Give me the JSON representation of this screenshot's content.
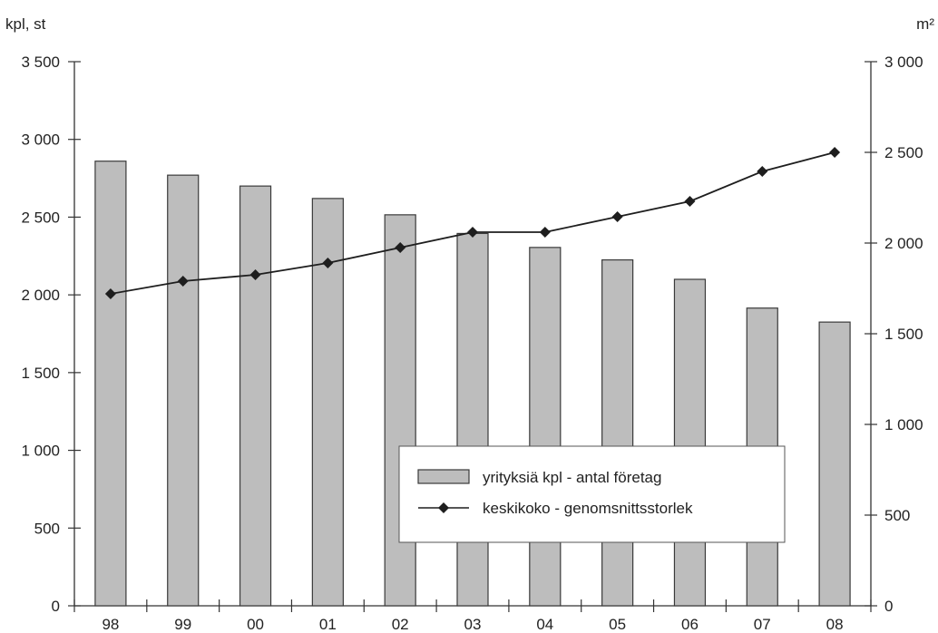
{
  "chart_data": {
    "type": "bar",
    "categories": [
      "98",
      "99",
      "00",
      "01",
      "02",
      "03",
      "04",
      "05",
      "06",
      "07",
      "08"
    ],
    "series": [
      {
        "name": "yrityksiä kpl - antal företag",
        "type": "bar",
        "axis": "left",
        "values": [
          2860,
          2770,
          2700,
          2620,
          2515,
          2395,
          2305,
          2225,
          2100,
          1915,
          1825
        ]
      },
      {
        "name": "keskikoko - genomsnittsstorlek",
        "type": "line",
        "axis": "right",
        "values": [
          1720,
          1790,
          1825,
          1890,
          1975,
          2060,
          2060,
          2145,
          2230,
          2395,
          2500
        ]
      }
    ],
    "left_axis": {
      "unit_label": "kpl, st",
      "ylim": [
        0,
        3500
      ],
      "ticks": [
        0,
        500,
        1000,
        1500,
        2000,
        2500,
        3000,
        3500
      ],
      "tick_labels": [
        "0",
        "500",
        "1 000",
        "1 500",
        "2 000",
        "2 500",
        "3 000",
        "3 500"
      ]
    },
    "right_axis": {
      "unit_label": "m²",
      "ylim": [
        0,
        3000
      ],
      "ticks": [
        0,
        500,
        1000,
        1500,
        2000,
        2500,
        3000
      ],
      "tick_labels": [
        "0",
        "500",
        "1 000",
        "1 500",
        "2 000",
        "2 500",
        "3 000"
      ]
    },
    "grid": false,
    "legend_position": "bottom-right",
    "colors": {
      "bar_fill": "#bdbdbd",
      "bar_stroke": "#3a3a3a",
      "line": "#1e1e1e",
      "axis": "#333333"
    },
    "marker": "diamond"
  }
}
